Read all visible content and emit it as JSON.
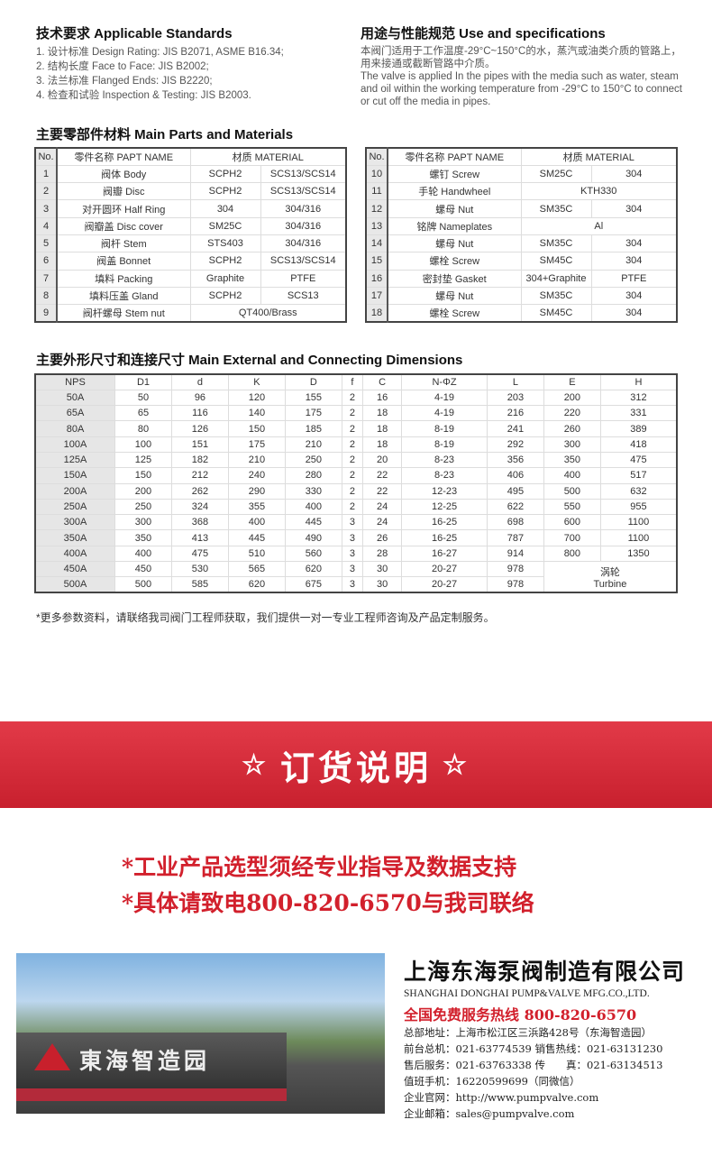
{
  "standards": {
    "title": "技术要求 Applicable Standards",
    "items": [
      "1. 设计标准 Design Rating: JIS B2071, ASME B16.34;",
      "2. 结构长度 Face to Face: JIS B2002;",
      "3. 法兰标准 Flanged Ends: JIS B2220;",
      "4. 检查和试验 Inspection & Testing: JIS B2003."
    ]
  },
  "use": {
    "title": "用途与性能规范 Use and specifications",
    "cn": "本阀门适用于工作温度-29°C~150°C的水，蒸汽或油类介质的管路上，用来接通或截断管路中介质。",
    "en": "The valve is applied In the pipes with the media such as water, steam and oil within the working temperature from -29°C to 150°C to connect or cut off the media in pipes."
  },
  "parts": {
    "title": "主要零部件材料 Main Parts and Materials",
    "headers": [
      "No.",
      "零件名称 PAPT NAME",
      "材质 MATERIAL"
    ],
    "left": [
      [
        "1",
        "阀体 Body",
        "SCPH2",
        "SCS13/SCS14"
      ],
      [
        "2",
        "阀瓣 Disc",
        "SCPH2",
        "SCS13/SCS14"
      ],
      [
        "3",
        "对开圆环 Half Ring",
        "304",
        "304/316"
      ],
      [
        "4",
        "阀瓣盖 Disc cover",
        "SM25C",
        "304/316"
      ],
      [
        "5",
        "阀杆 Stem",
        "STS403",
        "304/316"
      ],
      [
        "6",
        "阀盖 Bonnet",
        "SCPH2",
        "SCS13/SCS14"
      ],
      [
        "7",
        "填料 Packing",
        "Graphite",
        "PTFE"
      ],
      [
        "8",
        "填料压盖 Gland",
        "SCPH2",
        "SCS13"
      ],
      [
        "9",
        "阀杆螺母 Stem nut",
        "QT400/Brass"
      ]
    ],
    "right": [
      [
        "10",
        "螺钉 Screw",
        "SM25C",
        "304"
      ],
      [
        "11",
        "手轮 Handwheel",
        "KTH330"
      ],
      [
        "12",
        "螺母 Nut",
        "SM35C",
        "304"
      ],
      [
        "13",
        "铭牌 Nameplates",
        "Al"
      ],
      [
        "14",
        "螺母 Nut",
        "SM35C",
        "304"
      ],
      [
        "15",
        "螺栓 Screw",
        "SM45C",
        "304"
      ],
      [
        "16",
        "密封垫 Gasket",
        "304+Graphite",
        "PTFE"
      ],
      [
        "17",
        "螺母 Nut",
        "SM35C",
        "304"
      ],
      [
        "18",
        "螺栓 Screw",
        "SM45C",
        "304"
      ]
    ]
  },
  "dims": {
    "title": "主要外形尺寸和连接尺寸 Main External and Connecting Dimensions",
    "headers": [
      "NPS",
      "D1",
      "d",
      "K",
      "D",
      "f",
      "C",
      "N-ΦZ",
      "L",
      "E",
      "H"
    ],
    "rows": [
      [
        "50A",
        "50",
        "96",
        "120",
        "155",
        "2",
        "16",
        "4-19",
        "203",
        "200",
        "312"
      ],
      [
        "65A",
        "65",
        "116",
        "140",
        "175",
        "2",
        "18",
        "4-19",
        "216",
        "220",
        "331"
      ],
      [
        "80A",
        "80",
        "126",
        "150",
        "185",
        "2",
        "18",
        "8-19",
        "241",
        "260",
        "389"
      ],
      [
        "100A",
        "100",
        "151",
        "175",
        "210",
        "2",
        "18",
        "8-19",
        "292",
        "300",
        "418"
      ],
      [
        "125A",
        "125",
        "182",
        "210",
        "250",
        "2",
        "20",
        "8-23",
        "356",
        "350",
        "475"
      ],
      [
        "150A",
        "150",
        "212",
        "240",
        "280",
        "2",
        "22",
        "8-23",
        "406",
        "400",
        "517"
      ],
      [
        "200A",
        "200",
        "262",
        "290",
        "330",
        "2",
        "22",
        "12-23",
        "495",
        "500",
        "632"
      ],
      [
        "250A",
        "250",
        "324",
        "355",
        "400",
        "2",
        "24",
        "12-25",
        "622",
        "550",
        "955"
      ],
      [
        "300A",
        "300",
        "368",
        "400",
        "445",
        "3",
        "24",
        "16-25",
        "698",
        "600",
        "1100"
      ],
      [
        "350A",
        "350",
        "413",
        "445",
        "490",
        "3",
        "26",
        "16-25",
        "787",
        "700",
        "1100"
      ],
      [
        "400A",
        "400",
        "475",
        "510",
        "560",
        "3",
        "28",
        "16-27",
        "914",
        "800",
        "1350"
      ],
      [
        "450A",
        "450",
        "530",
        "565",
        "620",
        "3",
        "30",
        "20-27",
        "978"
      ],
      [
        "500A",
        "500",
        "585",
        "620",
        "675",
        "3",
        "30",
        "20-27",
        "978"
      ]
    ],
    "turbine_cn": "涡轮",
    "turbine_en": "Turbine"
  },
  "note": "*更多参数资料，请联络我司阀门工程师获取，我们提供一对一专业工程师咨询及产品定制服务。",
  "banner": {
    "star": "☆",
    "title": "订货说明"
  },
  "red_lines": [
    "*工业产品选型须经专业指导及数据支持",
    "*具体请致电800-820-6570与我司联络"
  ],
  "photo": {
    "sign": "東海智造园"
  },
  "company": {
    "name_cn": "上海东海泵阀制造有限公司",
    "name_en": "SHANGHAI DONGHAI PUMP&VALVE MFG.CO.,LTD.",
    "hotline": "全国免费服务热线  800-820-6570",
    "lines": [
      "总部地址：上海市松江区三浜路428号（东海智造园）",
      "前台总机：021-63774539   销售热线：021-63131230",
      "售后服务：021-63763338   传　　真：021-63134513",
      "值班手机：16220599699（同微信）",
      "企业官网：http://www.pumpvalve.com",
      "企业邮箱：sales@pumpvalve.com"
    ]
  },
  "colors": {
    "accent_red": "#d2202c",
    "banner": "#d42a38"
  }
}
